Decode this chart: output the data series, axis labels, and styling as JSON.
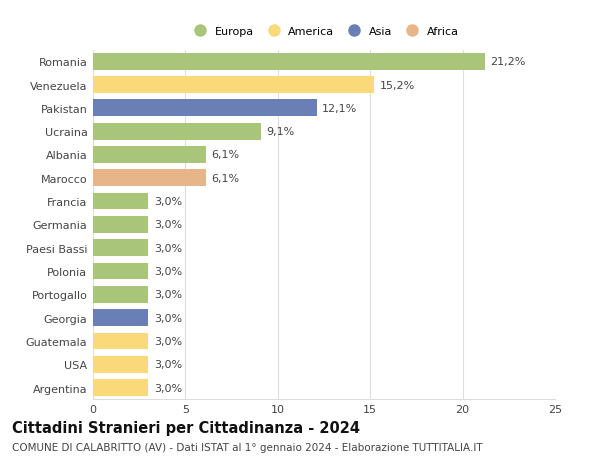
{
  "categories": [
    "Romania",
    "Venezuela",
    "Pakistan",
    "Ucraina",
    "Albania",
    "Marocco",
    "Francia",
    "Germania",
    "Paesi Bassi",
    "Polonia",
    "Portogallo",
    "Georgia",
    "Guatemala",
    "USA",
    "Argentina"
  ],
  "values": [
    21.2,
    15.2,
    12.1,
    9.1,
    6.1,
    6.1,
    3.0,
    3.0,
    3.0,
    3.0,
    3.0,
    3.0,
    3.0,
    3.0,
    3.0
  ],
  "labels": [
    "21,2%",
    "15,2%",
    "12,1%",
    "9,1%",
    "6,1%",
    "6,1%",
    "3,0%",
    "3,0%",
    "3,0%",
    "3,0%",
    "3,0%",
    "3,0%",
    "3,0%",
    "3,0%",
    "3,0%"
  ],
  "colors": [
    "#a8c57a",
    "#f9d97a",
    "#6a7fb5",
    "#a8c57a",
    "#a8c57a",
    "#e8b48a",
    "#a8c57a",
    "#a8c57a",
    "#a8c57a",
    "#a8c57a",
    "#a8c57a",
    "#6a7fb5",
    "#f9d97a",
    "#f9d97a",
    "#f9d97a"
  ],
  "legend_labels": [
    "Europa",
    "America",
    "Asia",
    "Africa"
  ],
  "legend_colors": [
    "#a8c57a",
    "#f9d97a",
    "#6a7fb5",
    "#e8b48a"
  ],
  "xlim": [
    0,
    25
  ],
  "xticks": [
    0,
    5,
    10,
    15,
    20,
    25
  ],
  "title": "Cittadini Stranieri per Cittadinanza - 2024",
  "subtitle": "COMUNE DI CALABRITTO (AV) - Dati ISTAT al 1° gennaio 2024 - Elaborazione TUTTITALIA.IT",
  "background_color": "#ffffff",
  "grid_color": "#dddddd",
  "bar_height": 0.72,
  "label_fontsize": 8,
  "tick_fontsize": 8,
  "title_fontsize": 10.5,
  "subtitle_fontsize": 7.5
}
